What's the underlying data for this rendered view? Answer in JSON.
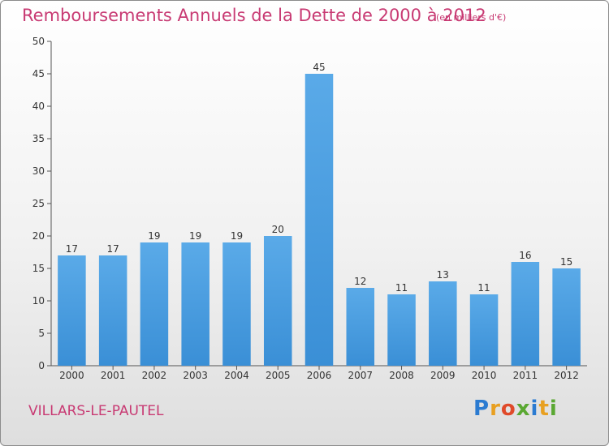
{
  "chart_data": {
    "type": "bar",
    "title": "Remboursements Annuels de la Dette de 2000 à 2012",
    "subtitle": "(en milliers d'€)",
    "categories": [
      "2000",
      "2001",
      "2002",
      "2003",
      "2004",
      "2005",
      "2006",
      "2007",
      "2008",
      "2009",
      "2010",
      "2011",
      "2012"
    ],
    "values": [
      17,
      17,
      19,
      19,
      19,
      20,
      45,
      12,
      11,
      13,
      11,
      16,
      15
    ],
    "ylim": [
      0,
      50
    ],
    "yticks": [
      0,
      5,
      10,
      15,
      20,
      25,
      30,
      35,
      40,
      45,
      50
    ],
    "xlabel": "",
    "ylabel": "",
    "grid": false,
    "bar_color": "#3a8fd6"
  },
  "footer": {
    "commune": "VILLARS-LE-PAUTEL",
    "logo_text": "Proxiti"
  },
  "colors": {
    "accent": "#c83a73",
    "logo_letters": [
      "#2b7bd1",
      "#e8a021",
      "#e04a2a",
      "#5aa832",
      "#2b7bd1",
      "#e8a021",
      "#5aa832"
    ]
  }
}
